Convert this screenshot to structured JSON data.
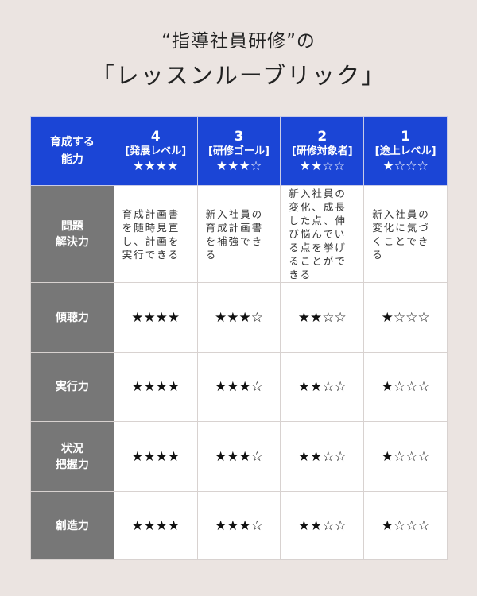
{
  "title": {
    "line1": "“指導社員研修”の",
    "line2": "「レッスンルーブリック」"
  },
  "table": {
    "corner": "育成する\n能力",
    "columns": [
      {
        "level": "4",
        "name": "[発展レベル]",
        "stars": "★★★★"
      },
      {
        "level": "3",
        "name": "[研修ゴール]",
        "stars": "★★★☆"
      },
      {
        "level": "2",
        "name": "[研修対象者]",
        "stars": "★★☆☆"
      },
      {
        "level": "1",
        "name": "[途上レベル]",
        "stars": "★☆☆☆"
      }
    ],
    "rows": [
      {
        "ability": "問題\n解決力",
        "type": "text",
        "cells": [
          "育成計画書を随時見直し、計画を実行できる",
          "新入社員の育成計画書を補強できる",
          "新入社員の変化、成長した点、伸び悩んでいる点を挙げることができる",
          "新入社員の変化に気づくことできる"
        ]
      },
      {
        "ability": "傾聴力",
        "type": "stars",
        "cells": [
          "★★★★",
          "★★★☆",
          "★★☆☆",
          "★☆☆☆"
        ]
      },
      {
        "ability": "実行力",
        "type": "stars",
        "cells": [
          "★★★★",
          "★★★☆",
          "★★☆☆",
          "★☆☆☆"
        ]
      },
      {
        "ability": "状況\n把握力",
        "type": "stars",
        "cells": [
          "★★★★",
          "★★★☆",
          "★★☆☆",
          "★☆☆☆"
        ]
      },
      {
        "ability": "創造力",
        "type": "stars",
        "cells": [
          "★★★★",
          "★★★☆",
          "★★☆☆",
          "★☆☆☆"
        ]
      }
    ]
  },
  "colors": {
    "header": "#1b45d6",
    "row_header": "#777777",
    "background": "#ebe4e1"
  }
}
